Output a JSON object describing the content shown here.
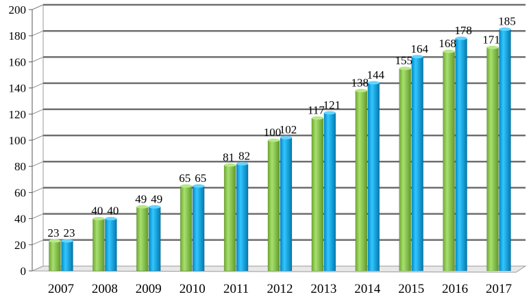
{
  "chart_data": {
    "type": "bar",
    "title": "",
    "xlabel": "",
    "ylabel": "",
    "categories": [
      "2007",
      "2008",
      "2009",
      "2010",
      "2011",
      "2012",
      "2013",
      "2014",
      "2015",
      "2016",
      "2017"
    ],
    "series": [
      {
        "color": "#92d050",
        "values": [
          23,
          40,
          49,
          65,
          81,
          100,
          117,
          138,
          155,
          168,
          171
        ]
      },
      {
        "color": "#00b0f0",
        "values": [
          23,
          40,
          49,
          65,
          82,
          102,
          121,
          144,
          164,
          178,
          185
        ]
      }
    ],
    "ylim": [
      0,
      200
    ],
    "yticks": [
      0,
      20,
      40,
      60,
      80,
      100,
      120,
      140,
      160,
      180,
      200
    ],
    "grid": true,
    "style": "3d-cylinder-bars",
    "data_labels": true,
    "legend": false
  }
}
